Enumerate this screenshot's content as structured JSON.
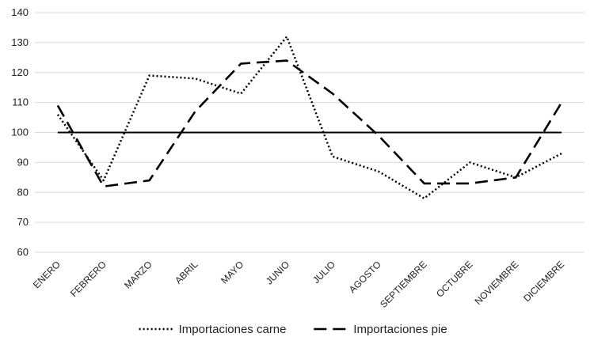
{
  "chart_data": {
    "type": "line",
    "categories": [
      "ENERO",
      "FEBRERO",
      "MARZO",
      "ABRIL",
      "MAYO",
      "JUNIO",
      "JULIO",
      "AGOSTO",
      "SEPTIEMBRE",
      "OCTUBRE",
      "NOVIEMBRE",
      "DICIEMBRE"
    ],
    "ylim": [
      60,
      140
    ],
    "yticks": [
      60,
      70,
      80,
      90,
      100,
      110,
      120,
      130,
      140
    ],
    "grid": true,
    "legend_position": "bottom",
    "series": [
      {
        "name": "Importaciones carne",
        "style": "dotted",
        "values": [
          106,
          84,
          119,
          118,
          113,
          132,
          92,
          87,
          78,
          90,
          85,
          93
        ]
      },
      {
        "name": "Importaciones pie",
        "style": "dashed",
        "values": [
          109,
          82,
          84,
          107,
          123,
          124,
          113,
          99,
          83,
          83,
          85,
          110
        ]
      },
      {
        "name": "",
        "style": "solid",
        "values": [
          100,
          100,
          100,
          100,
          100,
          100,
          100,
          100,
          100,
          100,
          100,
          100
        ]
      }
    ],
    "colors": {
      "line": "#000000",
      "grid": "#d9d9d9"
    }
  }
}
